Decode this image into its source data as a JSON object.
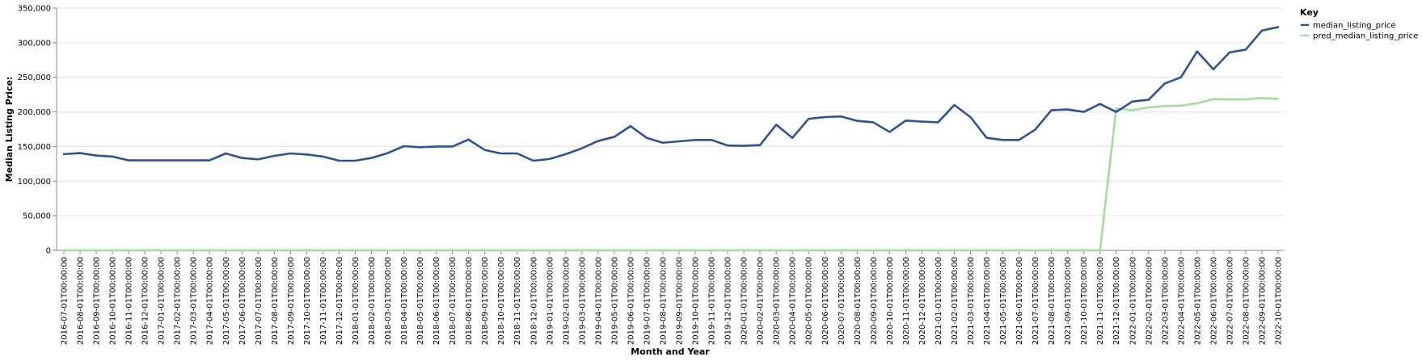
{
  "chart_data": {
    "type": "line",
    "xlabel": "Month and Year",
    "ylabel": "Median Listing Price:",
    "ylim": [
      0,
      350000
    ],
    "y_ticks": [
      "0",
      "50,000",
      "100,000",
      "150,000",
      "200,000",
      "250,000",
      "300,000",
      "350,000"
    ],
    "y_tick_values": [
      0,
      50000,
      100000,
      150000,
      200000,
      250000,
      300000,
      350000
    ],
    "grid": true,
    "legend": {
      "title": "Key",
      "placement": "top-right"
    },
    "x": [
      "2016-07-01T00:00:00",
      "2016-08-01T00:00:00",
      "2016-09-01T00:00:00",
      "2016-10-01T00:00:00",
      "2016-11-01T00:00:00",
      "2016-12-01T00:00:00",
      "2017-01-01T00:00:00",
      "2017-02-01T00:00:00",
      "2017-03-01T00:00:00",
      "2017-04-01T00:00:00",
      "2017-05-01T00:00:00",
      "2017-06-01T00:00:00",
      "2017-07-01T00:00:00",
      "2017-08-01T00:00:00",
      "2017-09-01T00:00:00",
      "2017-10-01T00:00:00",
      "2017-11-01T00:00:00",
      "2017-12-01T00:00:00",
      "2018-01-01T00:00:00",
      "2018-02-01T00:00:00",
      "2018-03-01T00:00:00",
      "2018-04-01T00:00:00",
      "2018-05-01T00:00:00",
      "2018-06-01T00:00:00",
      "2018-07-01T00:00:00",
      "2018-08-01T00:00:00",
      "2018-09-01T00:00:00",
      "2018-10-01T00:00:00",
      "2018-11-01T00:00:00",
      "2018-12-01T00:00:00",
      "2019-01-01T00:00:00",
      "2019-02-01T00:00:00",
      "2019-03-01T00:00:00",
      "2019-04-01T00:00:00",
      "2019-05-01T00:00:00",
      "2019-06-01T00:00:00",
      "2019-07-01T00:00:00",
      "2019-08-01T00:00:00",
      "2019-09-01T00:00:00",
      "2019-10-01T00:00:00",
      "2019-11-01T00:00:00",
      "2019-12-01T00:00:00",
      "2020-01-01T00:00:00",
      "2020-02-01T00:00:00",
      "2020-03-01T00:00:00",
      "2020-04-01T00:00:00",
      "2020-05-01T00:00:00",
      "2020-06-01T00:00:00",
      "2020-07-01T00:00:00",
      "2020-08-01T00:00:00",
      "2020-09-01T00:00:00",
      "2020-10-01T00:00:00",
      "2020-11-01T00:00:00",
      "2020-12-01T00:00:00",
      "2021-01-01T00:00:00",
      "2021-02-01T00:00:00",
      "2021-03-01T00:00:00",
      "2021-04-01T00:00:00",
      "2021-05-01T00:00:00",
      "2021-06-01T00:00:00",
      "2021-07-01T00:00:00",
      "2021-08-01T00:00:00",
      "2021-09-01T00:00:00",
      "2021-10-01T00:00:00",
      "2021-11-01T00:00:00",
      "2021-12-01T00:00:00",
      "2022-01-01T00:00:00",
      "2022-02-01T00:00:00",
      "2022-03-01T00:00:00",
      "2022-04-01T00:00:00",
      "2022-05-01T00:00:00",
      "2022-06-01T00:00:00",
      "2022-07-01T00:00:00",
      "2022-08-01T00:00:00",
      "2022-09-01T00:00:00",
      "2022-10-01T00:00:00"
    ],
    "series": [
      {
        "name": "median_listing_price",
        "color": "#2b5397",
        "values": [
          139000,
          140500,
          137000,
          135500,
          130000,
          130000,
          130000,
          130000,
          130000,
          130000,
          140000,
          133500,
          131500,
          136500,
          140000,
          138500,
          135500,
          129500,
          129500,
          133500,
          140500,
          150500,
          149000,
          150000,
          150000,
          160000,
          145000,
          140000,
          140000,
          129500,
          132000,
          139000,
          147500,
          158000,
          164000,
          179500,
          162500,
          155500,
          157500,
          159500,
          159500,
          151500,
          151000,
          152000,
          181500,
          162500,
          190000,
          192500,
          193500,
          187000,
          185000,
          171000,
          187500,
          186000,
          185000,
          210000,
          192500,
          162500,
          159500,
          159500,
          174500,
          202500,
          203500,
          200000,
          211500,
          200000,
          215000,
          217500,
          241000,
          250000,
          287500,
          261500,
          286000,
          290000,
          317500,
          322500
        ]
      },
      {
        "name": "pred_median_listing_price",
        "color": "#a6dba0",
        "values": [
          0,
          0,
          0,
          0,
          0,
          0,
          0,
          0,
          0,
          0,
          0,
          0,
          0,
          0,
          0,
          0,
          0,
          0,
          0,
          0,
          0,
          0,
          0,
          0,
          0,
          0,
          0,
          0,
          0,
          0,
          0,
          0,
          0,
          0,
          0,
          0,
          0,
          0,
          0,
          0,
          0,
          0,
          0,
          0,
          0,
          0,
          0,
          0,
          0,
          0,
          0,
          0,
          0,
          0,
          0,
          0,
          0,
          0,
          0,
          0,
          0,
          0,
          0,
          0,
          0,
          205000,
          202500,
          206500,
          208500,
          209000,
          212500,
          218500,
          218000,
          218000,
          220000,
          219000
        ]
      }
    ]
  }
}
